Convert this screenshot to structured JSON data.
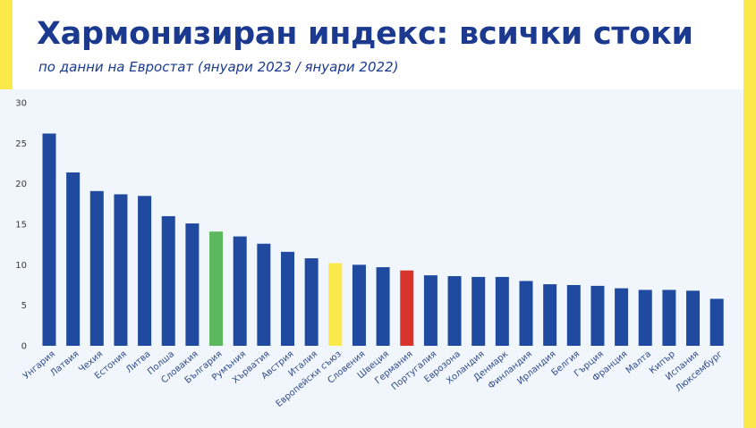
{
  "title": "Хармонизиран индекс: всички стоки",
  "subtitle": "по данни на Евростат (януари 2023 / януари 2022)",
  "colors": {
    "bar_default": "#1f4aa0",
    "highlight_bulgaria": "#5cb85c",
    "highlight_eu": "#fbe84b",
    "highlight_germany": "#d9342b",
    "brand_yellow": "#fbe84b",
    "title": "#1b3a8f"
  },
  "chart_data": {
    "type": "bar",
    "title": "Хармонизиран индекс: всички стоки",
    "subtitle": "по данни на Евростат (януари 2023 / януари 2022)",
    "xlabel": "",
    "ylabel": "",
    "ylim": [
      0,
      30
    ],
    "yticks": [
      0,
      5,
      10,
      15,
      20,
      25,
      30
    ],
    "grid": false,
    "categories": [
      "Унгария",
      "Латвия",
      "Чехия",
      "Естония",
      "Литва",
      "Полша",
      "Словакия",
      "България",
      "Румъния",
      "Хърватия",
      "Австрия",
      "Италия",
      "Европейски съюз",
      "Словения",
      "Швеция",
      "Германия",
      "Португалия",
      "Еврозона",
      "Холандия",
      "Денмарк",
      "Финландия",
      "Ирландия",
      "Белгия",
      "Гърция",
      "Франция",
      "Малта",
      "Кипър",
      "Испания",
      "Люксембург"
    ],
    "values": [
      26.2,
      21.4,
      19.1,
      18.7,
      18.5,
      16.0,
      15.1,
      14.1,
      13.5,
      12.6,
      11.6,
      10.8,
      10.2,
      10.0,
      9.7,
      9.3,
      8.7,
      8.6,
      8.5,
      8.5,
      8.0,
      7.6,
      7.5,
      7.4,
      7.1,
      6.9,
      6.9,
      6.8,
      5.8
    ],
    "highlights": {
      "България": "highlight_bulgaria",
      "Европейски съюз": "highlight_eu",
      "Германия": "highlight_germany"
    }
  }
}
